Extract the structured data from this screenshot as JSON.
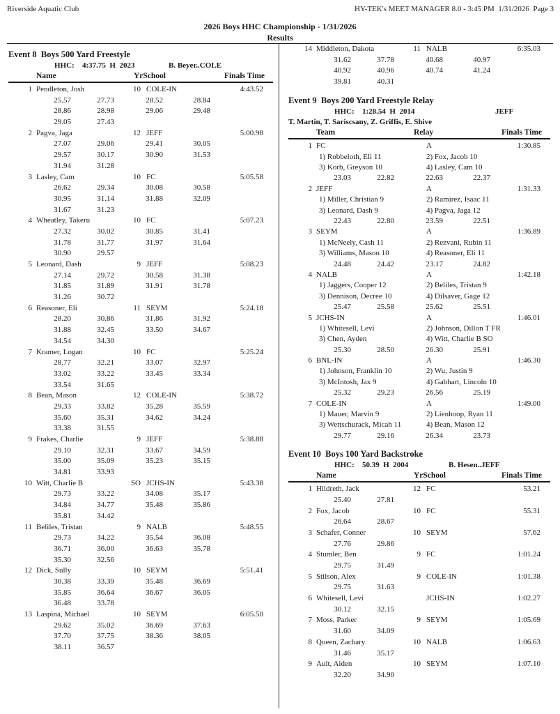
{
  "page": {
    "club": "Riverside Aquatic Club",
    "meta": "HY-TEK's MEET MANAGER 8.0 - 3:45 PM  1/31/2026  Page 3",
    "title": "2026 Boys HHC Championship - 1/31/2026",
    "results_label": "Results"
  },
  "events": [
    {
      "id": "event-8",
      "type": "individual",
      "title": "Event 8  Boys 500 Yard Freestyle",
      "record": {
        "label": "HHC:",
        "time": "4:37.75",
        "flag": "H",
        "year": "2023",
        "holder": "B. Beyer..COLE"
      },
      "columns": {
        "name": "Name",
        "school": "YrSchool",
        "time": "Finals Time"
      },
      "entries": [
        {
          "place": "1",
          "name": "Pendleton, Josh",
          "yr": "10",
          "school": "COLE-IN",
          "time": "4:43.52",
          "splits": [
            [
              "25.57",
              "27.73",
              "28.52",
              "28.84"
            ],
            [
              "28.86",
              "28.98",
              "29.06",
              "29.48"
            ],
            [
              "29.05",
              "27.43"
            ]
          ]
        },
        {
          "place": "2",
          "name": "Pagva, Jaga",
          "yr": "12",
          "school": "JEFF",
          "time": "5:00.98",
          "splits": [
            [
              "27.07",
              "29.06",
              "29.41",
              "30.05"
            ],
            [
              "29.57",
              "30.17",
              "30.90",
              "31.53"
            ],
            [
              "31.94",
              "31.28"
            ]
          ]
        },
        {
          "place": "3",
          "name": "Lasley, Cam",
          "yr": "10",
          "school": "FC",
          "time": "5:05.58",
          "splits": [
            [
              "26.62",
              "29.34",
              "30.08",
              "30.58"
            ],
            [
              "30.95",
              "31.14",
              "31.88",
              "32.09"
            ],
            [
              "31.67",
              "31.23"
            ]
          ]
        },
        {
          "place": "4",
          "name": "Wheatley, Takeru",
          "yr": "10",
          "school": "FC",
          "time": "5:07.23",
          "splits": [
            [
              "27.32",
              "30.02",
              "30.85",
              "31.41"
            ],
            [
              "31.78",
              "31.77",
              "31.97",
              "31.64"
            ],
            [
              "30.90",
              "29.57"
            ]
          ]
        },
        {
          "place": "5",
          "name": "Leonard, Dash",
          "yr": "9",
          "school": "JEFF",
          "time": "5:08.23",
          "splits": [
            [
              "27.14",
              "29.72",
              "30.58",
              "31.38"
            ],
            [
              "31.85",
              "31.89",
              "31.91",
              "31.78"
            ],
            [
              "31.26",
              "30.72"
            ]
          ]
        },
        {
          "place": "6",
          "name": "Reasoner, Eli",
          "yr": "11",
          "school": "SEYM",
          "time": "5:24.18",
          "splits": [
            [
              "28.20",
              "30.86",
              "31.86",
              "31.92"
            ],
            [
              "31.88",
              "32.45",
              "33.50",
              "34.67"
            ],
            [
              "34.54",
              "34.30"
            ]
          ]
        },
        {
          "place": "7",
          "name": "Kramer, Logan",
          "yr": "10",
          "school": "FC",
          "time": "5:25.24",
          "splits": [
            [
              "28.77",
              "32.21",
              "33.07",
              "32.97"
            ],
            [
              "33.02",
              "33.22",
              "33.45",
              "33.34"
            ],
            [
              "33.54",
              "31.65"
            ]
          ]
        },
        {
          "place": "8",
          "name": "Bean, Mason",
          "yr": "12",
          "school": "COLE-IN",
          "time": "5:38.72",
          "splits": [
            [
              "29.33",
              "33.82",
              "35.28",
              "35.59"
            ],
            [
              "35.60",
              "35.31",
              "34.62",
              "34.24"
            ],
            [
              "33.38",
              "31.55"
            ]
          ]
        },
        {
          "place": "9",
          "name": "Frakes, Charlie",
          "yr": "9",
          "school": "JEFF",
          "time": "5:38.88",
          "splits": [
            [
              "29.10",
              "32.31",
              "33.67",
              "34.59"
            ],
            [
              "35.00",
              "35.09",
              "35.23",
              "35.15"
            ],
            [
              "34.81",
              "33.93"
            ]
          ]
        },
        {
          "place": "10",
          "name": "Witt, Charlie B",
          "yr": "SO",
          "school": "JCHS-IN",
          "time": "5:43.38",
          "splits": [
            [
              "29.73",
              "33.22",
              "34.08",
              "35.17"
            ],
            [
              "34.84",
              "34.77",
              "35.48",
              "35.86"
            ],
            [
              "35.81",
              "34.42"
            ]
          ]
        },
        {
          "place": "11",
          "name": "Beliles, Tristan",
          "yr": "9",
          "school": "NALB",
          "time": "5:48.55",
          "splits": [
            [
              "29.73",
              "34.22",
              "35.54",
              "36.08"
            ],
            [
              "36.71",
              "36.00",
              "36.63",
              "35.78"
            ],
            [
              "35.30",
              "32.56"
            ]
          ]
        },
        {
          "place": "12",
          "name": "Dick, Sully",
          "yr": "10",
          "school": "SEYM",
          "time": "5:51.41",
          "splits": [
            [
              "30.38",
              "33.39",
              "35.48",
              "36.69"
            ],
            [
              "35.85",
              "36.64",
              "36.67",
              "36.05"
            ],
            [
              "36.48",
              "33.78"
            ]
          ]
        },
        {
          "place": "13",
          "name": "Laspina, Michael",
          "yr": "10",
          "school": "SEYM",
          "time": "6:05.50",
          "splits": [
            [
              "29.62",
              "35.02",
              "36.69",
              "37.63"
            ],
            [
              "37.70",
              "37.75",
              "38.36",
              "38.05"
            ],
            [
              "38.11",
              "36.57"
            ]
          ]
        },
        {
          "place": "14",
          "name": "Middleton, Dakota",
          "yr": "11",
          "school": "NALB",
          "time": "6:35.03",
          "splits": [
            [
              "31.62",
              "37.78",
              "40.68",
              "40.97"
            ],
            [
              "40.92",
              "40.96",
              "40.74",
              "41.24"
            ],
            [
              "39.81",
              "40.31"
            ]
          ]
        }
      ]
    },
    {
      "id": "event-9",
      "type": "relay",
      "title": "Event 9  Boys 200 Yard Freestyle Relay",
      "record": {
        "label": "HHC:",
        "time": "1:28.54",
        "flag": "H",
        "year": "2014",
        "holder": "JEFF"
      },
      "record_members": "T. Martin, T. Sariscsany, Z. Griffis, E. Shive",
      "columns": {
        "name": "Team",
        "school": "Relay",
        "time": "Finals Time"
      },
      "entries": [
        {
          "place": "1",
          "team": "FC",
          "relay": "A",
          "time": "1:30.85",
          "legs": [
            [
              "1) Robbeloth, Eli 11",
              "2) Fox, Jacob 10"
            ],
            [
              "3) Korb, Greyson 10",
              "4) Lasley, Cam 10"
            ]
          ],
          "splits": [
            [
              "23.03",
              "22.82",
              "22.63",
              "22.37"
            ]
          ]
        },
        {
          "place": "2",
          "team": "JEFF",
          "relay": "A",
          "time": "1:31.33",
          "legs": [
            [
              "1) Miller, Christian 9",
              "2) Ramirez, Isaac 11"
            ],
            [
              "3) Leonard, Dash 9",
              "4) Pagva, Jaga 12"
            ]
          ],
          "splits": [
            [
              "22.43",
              "22.80",
              "23.59",
              "22.51"
            ]
          ]
        },
        {
          "place": "3",
          "team": "SEYM",
          "relay": "A",
          "time": "1:36.89",
          "legs": [
            [
              "1) McNeely, Cash 11",
              "2) Rezvani, Rubin 11"
            ],
            [
              "3) Williams, Mason 10",
              "4) Reasoner, Eli 11"
            ]
          ],
          "splits": [
            [
              "24.48",
              "24.42",
              "23.17",
              "24.82"
            ]
          ]
        },
        {
          "place": "4",
          "team": "NALB",
          "relay": "A",
          "time": "1:42.18",
          "legs": [
            [
              "1) Jaggers, Cooper 12",
              "2) Beliles, Tristan 9"
            ],
            [
              "3) Dennison, Decree 10",
              "4) Dilsaver, Gage 12"
            ]
          ],
          "splits": [
            [
              "25.47",
              "25.58",
              "25.62",
              "25.51"
            ]
          ]
        },
        {
          "place": "5",
          "team": "JCHS-IN",
          "relay": "A",
          "time": "1:46.01",
          "legs": [
            [
              "1) Whitesell, Levi",
              "2) Johnson, Dillon T FR"
            ],
            [
              "3) Chen, Ayden",
              "4) Witt, Charlie B SO"
            ]
          ],
          "splits": [
            [
              "25.30",
              "28.50",
              "26.30",
              "25.91"
            ]
          ]
        },
        {
          "place": "6",
          "team": "BNL-IN",
          "relay": "A",
          "time": "1:46.30",
          "legs": [
            [
              "1) Johnson, Franklin 10",
              "2) Wu, Justin 9"
            ],
            [
              "3) McIntosh, Jax 9",
              "4) Gabhart, Lincoln 10"
            ]
          ],
          "splits": [
            [
              "25.32",
              "29.23",
              "26.56",
              "25.19"
            ]
          ]
        },
        {
          "place": "7",
          "team": "COLE-IN",
          "relay": "A",
          "time": "1:49.00",
          "legs": [
            [
              "1) Mauer, Marvin 9",
              "2) Lienhoop, Ryan 11"
            ],
            [
              "3) Wettschurack, Micah 11",
              "4) Bean, Mason 12"
            ]
          ],
          "splits": [
            [
              "29.77",
              "29.16",
              "26.34",
              "23.73"
            ]
          ]
        }
      ]
    },
    {
      "id": "event-10",
      "type": "individual",
      "title": "Event 10  Boys 100 Yard Backstroke",
      "record": {
        "label": "HHC:",
        "time": "50.39",
        "flag": "H",
        "year": "2004",
        "holder": "B. Hesen..JEFF"
      },
      "columns": {
        "name": "Name",
        "school": "YrSchool",
        "time": "Finals Time"
      },
      "entries": [
        {
          "place": "1",
          "name": "Hildreth, Jack",
          "yr": "12",
          "school": "FC",
          "time": "53.21",
          "splits": [
            [
              "25.40",
              "27.81"
            ]
          ]
        },
        {
          "place": "2",
          "name": "Fox, Jacob",
          "yr": "10",
          "school": "FC",
          "time": "55.31",
          "splits": [
            [
              "26.64",
              "28.67"
            ]
          ]
        },
        {
          "place": "3",
          "name": "Schafer, Conner",
          "yr": "10",
          "school": "SEYM",
          "time": "57.62",
          "splits": [
            [
              "27.76",
              "29.86"
            ]
          ]
        },
        {
          "place": "4",
          "name": "Stumler, Ben",
          "yr": "9",
          "school": "FC",
          "time": "1:01.24",
          "splits": [
            [
              "29.75",
              "31.49"
            ]
          ]
        },
        {
          "place": "5",
          "name": "Stilson, Alex",
          "yr": "9",
          "school": "COLE-IN",
          "time": "1:01.38",
          "splits": [
            [
              "29.75",
              "31.63"
            ]
          ]
        },
        {
          "place": "6",
          "name": "Whitesell, Levi",
          "yr": "",
          "school": "JCHS-IN",
          "time": "1:02.27",
          "splits": [
            [
              "30.12",
              "32.15"
            ]
          ]
        },
        {
          "place": "7",
          "name": "Moss, Parker",
          "yr": "9",
          "school": "SEYM",
          "time": "1:05.69",
          "splits": [
            [
              "31.60",
              "34.09"
            ]
          ]
        },
        {
          "place": "8",
          "name": "Queen, Zachary",
          "yr": "10",
          "school": "NALB",
          "time": "1:06.63",
          "splits": [
            [
              "31.46",
              "35.17"
            ]
          ]
        },
        {
          "place": "9",
          "name": "Ault, Aiden",
          "yr": "10",
          "school": "SEYM",
          "time": "1:07.10",
          "splits": [
            [
              "32.20",
              "34.90"
            ]
          ]
        }
      ]
    }
  ]
}
